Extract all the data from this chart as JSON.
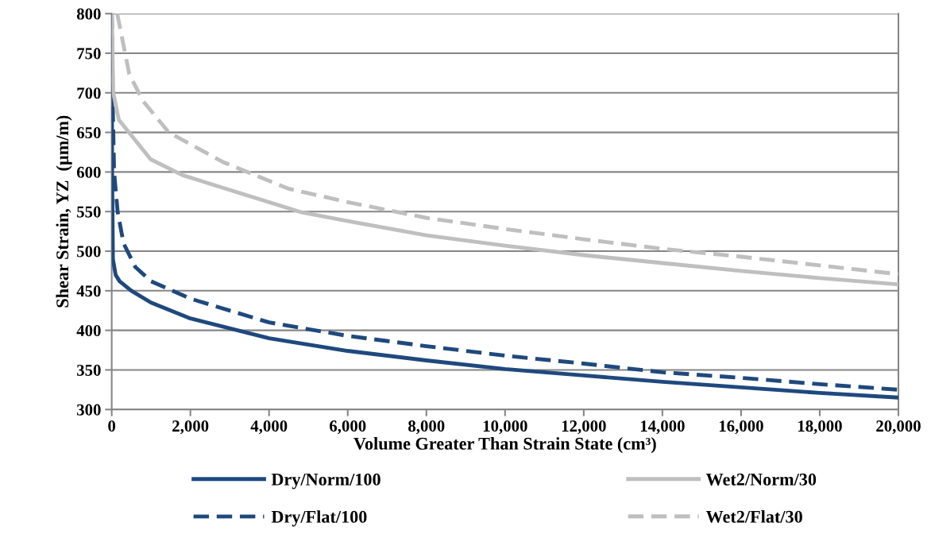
{
  "chart_data": {
    "type": "line",
    "xlabel": "Volume Greater Than Strain State (cm³)",
    "ylabel": "Shear Strain, YZ  (µm/m)",
    "xlim": [
      0,
      20000
    ],
    "ylim": [
      300,
      800
    ],
    "xticks": [
      {
        "value": 0,
        "label": "0"
      },
      {
        "value": 2000,
        "label": "2,000"
      },
      {
        "value": 4000,
        "label": "4,000"
      },
      {
        "value": 6000,
        "label": "6,000"
      },
      {
        "value": 8000,
        "label": "8,000"
      },
      {
        "value": 10000,
        "label": "10,000"
      },
      {
        "value": 12000,
        "label": "12,000"
      },
      {
        "value": 14000,
        "label": "14,000"
      },
      {
        "value": 16000,
        "label": "16,000"
      },
      {
        "value": 18000,
        "label": "18,000"
      },
      {
        "value": 20000,
        "label": "20,000"
      }
    ],
    "yticks": [
      300,
      350,
      400,
      450,
      500,
      550,
      600,
      650,
      700,
      750,
      800
    ],
    "grid": "y",
    "legend": "bottom",
    "marker": "none",
    "series": [
      {
        "name": "Dry/Norm/100",
        "color": "#1f497d",
        "line_style": "solid",
        "x": [
          0,
          10,
          30,
          100,
          200,
          500,
          1000,
          2000,
          4000,
          6000,
          8000,
          10000,
          12000,
          14000,
          16000,
          18000,
          20000
        ],
        "values": [
          800,
          600,
          490,
          470,
          462,
          450,
          435,
          415,
          390,
          374,
          362,
          351,
          343,
          335,
          328,
          321,
          315
        ]
      },
      {
        "name": "Dry/Flat/100",
        "color": "#1f497d",
        "line_style": "dashed",
        "x": [
          0,
          20,
          60,
          150,
          300,
          600,
          1000,
          2000,
          4000,
          6000,
          8000,
          10000,
          12000,
          14000,
          16000,
          18000,
          20000
        ],
        "values": [
          800,
          700,
          600,
          550,
          510,
          480,
          462,
          440,
          410,
          393,
          380,
          368,
          358,
          347,
          340,
          332,
          325
        ]
      },
      {
        "name": "Wet2/Norm/30",
        "color": "#bfbfbf",
        "line_style": "solid",
        "x": [
          0,
          40,
          180,
          990,
          1800,
          4830,
          6000,
          8000,
          10000,
          12000,
          14000,
          16000,
          18000,
          20000
        ],
        "values": [
          800,
          700,
          666,
          616,
          596,
          549,
          538,
          520,
          507,
          495,
          485,
          475,
          466,
          458
        ]
      },
      {
        "name": "Wet2/Flat/30",
        "color": "#bfbfbf",
        "line_style": "dashed",
        "x": [
          140,
          445,
          790,
          1450,
          2810,
          4490,
          6000,
          8000,
          10000,
          12000,
          14000,
          16000,
          18000,
          20000
        ],
        "values": [
          800,
          724,
          690,
          650,
          613,
          579,
          562,
          542,
          528,
          515,
          503,
          493,
          482,
          471
        ]
      }
    ]
  }
}
